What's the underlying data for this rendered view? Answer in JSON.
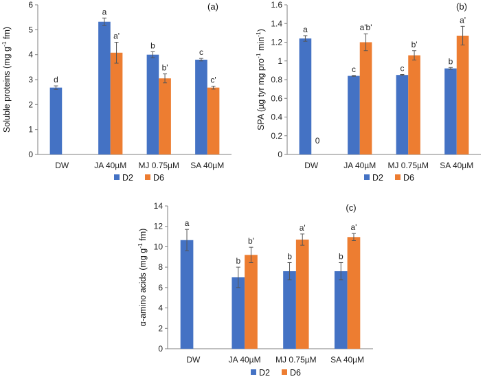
{
  "colors": {
    "D2": "#4472c4",
    "D6": "#ed7d31",
    "axis": "#7f7f7f",
    "err": "#555555"
  },
  "chart_data": [
    {
      "type": "bar",
      "panel": "(a)",
      "ylabel_main": "Soluble proteins (mg g",
      "ylabel_sup": "-1",
      "ylabel_tail": " fm)",
      "ylim": [
        0,
        6
      ],
      "yticks": [
        "0",
        "1",
        "2",
        "3",
        "4",
        "5",
        "6"
      ],
      "categories": [
        "DW",
        "JA 40µM",
        "MJ 0.75µM",
        "SA 40µM"
      ],
      "series": [
        {
          "name": "D2",
          "values": [
            2.68,
            5.32,
            4.0,
            3.8
          ],
          "errors": [
            0.07,
            0.15,
            0.12,
            0.05
          ],
          "labels": [
            "d",
            "a",
            "b",
            "c"
          ]
        },
        {
          "name": "D6",
          "values": [
            null,
            4.08,
            3.05,
            2.68
          ],
          "errors": [
            null,
            0.42,
            0.18,
            0.06
          ],
          "labels": [
            "",
            "a'",
            "b'",
            "c'"
          ]
        }
      ]
    },
    {
      "type": "bar",
      "panel": "(b)",
      "ylabel_main": "SPA (µg tyr mg pro",
      "ylabel_sup": "-1",
      "ylabel_tail": " min",
      "ylabel_sup2": "-1",
      "ylabel_end": ")",
      "ylim": [
        0,
        1.6
      ],
      "yticks": [
        "0",
        "0.2",
        "0.4",
        "0.6",
        "0.8",
        "1",
        "1.2",
        "1.4",
        "1.6"
      ],
      "categories": [
        "DW",
        "JA 40µM",
        "MJ 0.75µM",
        "SA 40µM"
      ],
      "series": [
        {
          "name": "D2",
          "values": [
            1.24,
            0.84,
            0.85,
            0.92
          ],
          "errors": [
            0.03,
            0.005,
            0.005,
            0.01
          ],
          "labels": [
            "a",
            "c",
            "c",
            "b"
          ]
        },
        {
          "name": "D6",
          "values": [
            0,
            1.2,
            1.06,
            1.27
          ],
          "errors": [
            0,
            0.09,
            0.05,
            0.1
          ],
          "labels": [
            "0",
            "a'b'",
            "b'",
            "a'"
          ]
        }
      ]
    },
    {
      "type": "bar",
      "panel": "(c)",
      "ylabel_main": "α-amino acids (mg g",
      "ylabel_sup": "-1",
      "ylabel_tail": " fm)",
      "ylim": [
        0,
        14
      ],
      "yticks": [
        "0",
        "2",
        "4",
        "6",
        "8",
        "10",
        "12",
        "14"
      ],
      "categories": [
        "DW",
        "JA 40µM",
        "MJ 0.75µM",
        "SA 40µM"
      ],
      "series": [
        {
          "name": "D2",
          "values": [
            10.65,
            7.0,
            7.6,
            7.6
          ],
          "errors": [
            1.05,
            1.0,
            0.85,
            0.85
          ],
          "labels": [
            "a",
            "b",
            "b",
            "b"
          ]
        },
        {
          "name": "D6",
          "values": [
            null,
            9.2,
            10.7,
            10.95
          ],
          "errors": [
            null,
            0.75,
            0.55,
            0.35
          ],
          "labels": [
            "",
            "b'",
            "a'",
            "a'"
          ]
        }
      ]
    }
  ]
}
